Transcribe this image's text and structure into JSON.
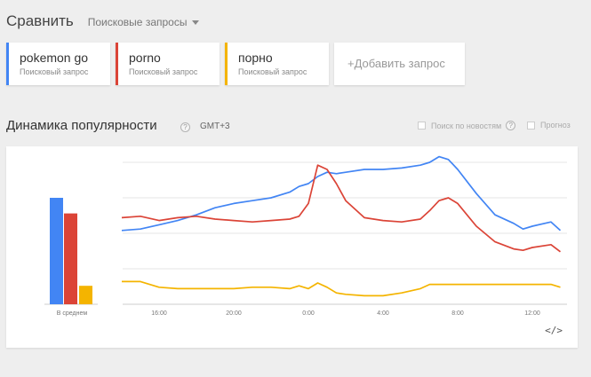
{
  "header": {
    "title": "Сравнить",
    "dropdown": "Поисковые запросы"
  },
  "terms": [
    {
      "name": "pokemon go",
      "sub": "Поисковый запрос",
      "color": "#4285f4"
    },
    {
      "name": "porno",
      "sub": "Поисковый запрос",
      "color": "#db4437"
    },
    {
      "name": "порно",
      "sub": "Поисковый запрос",
      "color": "#f4b400"
    }
  ],
  "add_term": "+Добавить запрос",
  "section": {
    "title": "Динамика популярности",
    "help": "?",
    "timezone": "GMT+3",
    "news_label": "Поиск по новостям",
    "forecast_label": "Прогноз"
  },
  "chart_data": {
    "type": "line",
    "average": {
      "label": "В среднем",
      "values": [
        75,
        64,
        13
      ]
    },
    "x_ticks": [
      "16:00",
      "20:00",
      "0:00",
      "4:00",
      "8:00",
      "12:00"
    ],
    "ylim": [
      0,
      100
    ],
    "grid": true,
    "x": [
      14.0,
      15.0,
      16.0,
      17.0,
      18.0,
      19.0,
      20.0,
      21.0,
      22.0,
      23.0,
      23.5,
      0.0,
      0.5,
      1.0,
      1.5,
      2.0,
      3.0,
      4.0,
      5.0,
      6.0,
      6.5,
      7.0,
      7.5,
      8.0,
      9.0,
      10.0,
      11.0,
      11.5,
      12.0,
      13.0,
      13.5
    ],
    "series": [
      {
        "name": "pokemon go",
        "color": "#4285f4",
        "values": [
          52,
          53,
          56,
          59,
          63,
          68,
          71,
          73,
          75,
          79,
          83,
          85,
          90,
          93,
          92,
          93,
          95,
          95,
          96,
          98,
          100,
          104,
          102,
          95,
          78,
          63,
          57,
          53,
          55,
          58,
          52
        ]
      },
      {
        "name": "porno",
        "color": "#db4437",
        "values": [
          61,
          62,
          59,
          61,
          62,
          60,
          59,
          58,
          59,
          60,
          62,
          71,
          98,
          95,
          85,
          73,
          61,
          59,
          58,
          60,
          66,
          73,
          75,
          71,
          55,
          44,
          39,
          38,
          40,
          42,
          37
        ]
      },
      {
        "name": "порно",
        "color": "#f4b400",
        "values": [
          16,
          16,
          12,
          11,
          11,
          11,
          11,
          12,
          12,
          11,
          13,
          11,
          15,
          12,
          8,
          7,
          6,
          6,
          8,
          11,
          14,
          14,
          14,
          14,
          14,
          14,
          14,
          14,
          14,
          14,
          12
        ]
      }
    ]
  },
  "embed_label": "</>"
}
